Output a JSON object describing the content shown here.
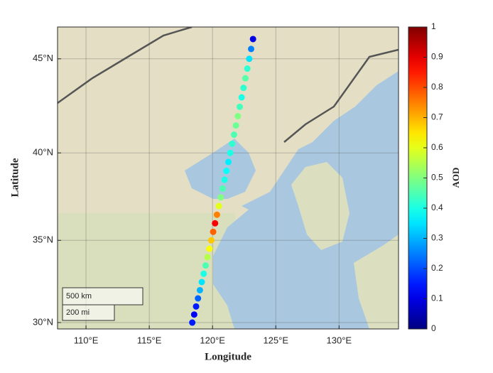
{
  "chart_data": {
    "type": "scatter",
    "projection": "mercator",
    "xlabel": "Longitude",
    "ylabel": "Latitude",
    "xlim": [
      107.75,
      134.7
    ],
    "ylim": [
      29.6,
      46.6
    ],
    "xticks": [
      {
        "value": 110,
        "label": "110°E"
      },
      {
        "value": 115,
        "label": "115°E"
      },
      {
        "value": 120,
        "label": "120°E"
      },
      {
        "value": 125,
        "label": "125°E"
      },
      {
        "value": 130,
        "label": "130°E"
      }
    ],
    "yticks": [
      {
        "value": 30,
        "label": "30°N"
      },
      {
        "value": 35,
        "label": "35°N"
      },
      {
        "value": 40,
        "label": "40°N"
      },
      {
        "value": 45,
        "label": "45°N"
      }
    ],
    "grid": true,
    "x": [
      118.4,
      118.55,
      118.7,
      118.85,
      119.0,
      119.15,
      119.3,
      119.45,
      119.6,
      119.75,
      119.9,
      120.05,
      120.2,
      120.35,
      120.5,
      120.65,
      120.8,
      120.95,
      121.1,
      121.25,
      121.4,
      121.55,
      121.7,
      121.85,
      122.0,
      122.15,
      122.3,
      122.45,
      122.6,
      122.75,
      122.9,
      123.05,
      123.2
    ],
    "y": [
      30.0,
      30.5,
      31.0,
      31.5,
      32.0,
      32.5,
      33.0,
      33.5,
      34.0,
      34.5,
      35.0,
      35.5,
      36.0,
      36.5,
      37.0,
      37.5,
      38.0,
      38.5,
      39.0,
      39.5,
      40.0,
      40.5,
      41.0,
      41.5,
      42.0,
      42.5,
      43.0,
      43.5,
      44.0,
      44.5,
      45.0,
      45.5,
      46.0
    ],
    "values": [
      0.15,
      0.12,
      0.15,
      0.22,
      0.3,
      0.35,
      0.4,
      0.45,
      0.55,
      0.62,
      0.68,
      0.78,
      0.88,
      0.75,
      0.6,
      0.5,
      0.45,
      0.4,
      0.38,
      0.36,
      0.4,
      0.42,
      0.45,
      0.48,
      0.5,
      0.44,
      0.4,
      0.42,
      0.46,
      0.42,
      0.35,
      0.25,
      0.1
    ],
    "colormap": "jet",
    "colorbar": {
      "label": "AOD",
      "lim": [
        0,
        1
      ],
      "ticks": [
        0,
        0.1,
        0.2,
        0.3,
        0.4,
        0.5,
        0.6,
        0.7,
        0.8,
        0.9,
        1
      ]
    },
    "scalebar": [
      "500 km",
      "200 mi"
    ]
  }
}
